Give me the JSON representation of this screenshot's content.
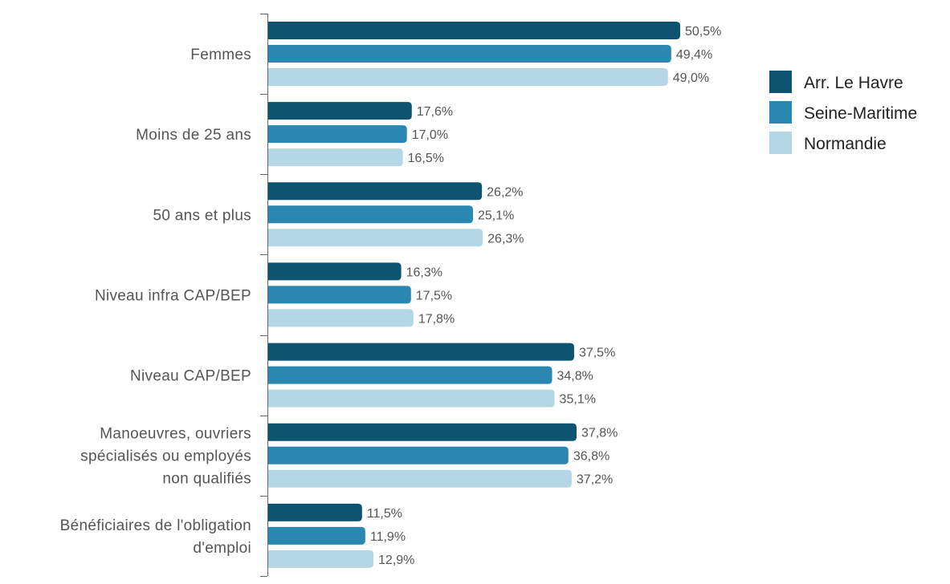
{
  "chart_data": {
    "type": "bar",
    "orientation": "horizontal",
    "categories": [
      "Femmes",
      "Moins de 25 ans",
      "50 ans et plus",
      "Niveau infra CAP/BEP",
      "Niveau CAP/BEP",
      "Manoeuvres, ouvriers spécialisés ou employés non qualifiés",
      "Bénéficiaires de l'obligation d'emploi"
    ],
    "category_lines": [
      [
        "Femmes"
      ],
      [
        "Moins de 25 ans"
      ],
      [
        "50 ans et plus"
      ],
      [
        "Niveau infra CAP/BEP"
      ],
      [
        "Niveau CAP/BEP"
      ],
      [
        "Manoeuvres, ouvriers",
        "spécialisés ou employés",
        "non qualifiés"
      ],
      [
        "Bénéficiaires de l'obligation",
        "d'emploi"
      ]
    ],
    "series": [
      {
        "name": "Arr. Le Havre",
        "color": "#0e5470",
        "values": [
          50.5,
          17.6,
          26.2,
          16.3,
          37.5,
          37.8,
          11.5
        ],
        "labels": [
          "50,5%",
          "17,6%",
          "26,2%",
          "16,3%",
          "37,5%",
          "37,8%",
          "11,5%"
        ]
      },
      {
        "name": "Seine-Maritime",
        "color": "#2a88b0",
        "values": [
          49.4,
          17.0,
          25.1,
          17.5,
          34.8,
          36.8,
          11.9
        ],
        "labels": [
          "49,4%",
          "17,0%",
          "25,1%",
          "17,5%",
          "34,8%",
          "36,8%",
          "11,9%"
        ]
      },
      {
        "name": "Normandie",
        "color": "#b3d7e5",
        "values": [
          49.0,
          16.5,
          26.3,
          17.8,
          35.1,
          37.2,
          12.9
        ],
        "labels": [
          "49,0%",
          "16,5%",
          "26,3%",
          "17,8%",
          "35,1%",
          "37,2%",
          "12,9%"
        ]
      }
    ],
    "xlim": [
      0,
      50.5
    ],
    "legend_position": "top-right",
    "grid": false,
    "title": "",
    "xlabel": "",
    "ylabel": ""
  }
}
